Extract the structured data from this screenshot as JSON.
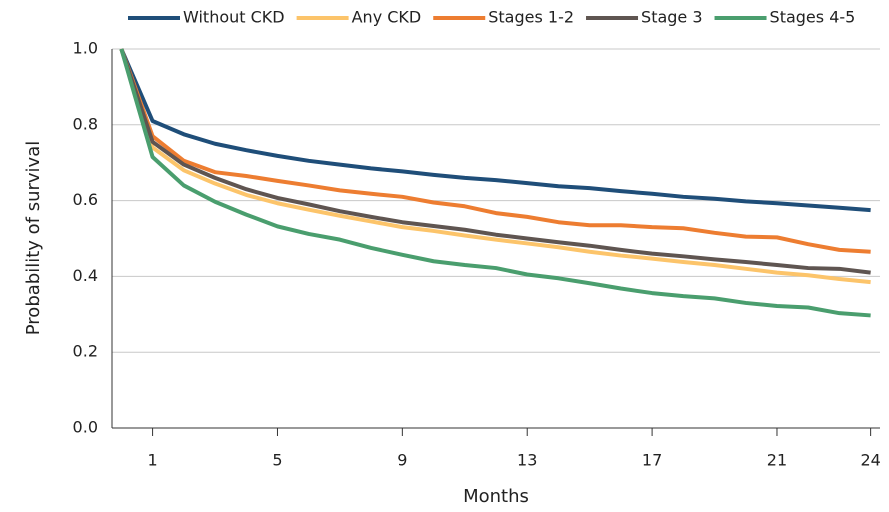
{
  "chart_data": {
    "type": "line",
    "x_label": "Months",
    "y_label": "Probability of survival",
    "x": [
      0,
      1,
      2,
      3,
      4,
      5,
      6,
      7,
      8,
      9,
      10,
      11,
      12,
      13,
      14,
      15,
      16,
      17,
      18,
      19,
      20,
      21,
      22,
      23,
      24
    ],
    "series": [
      {
        "name": "Without CKD",
        "color": "#1f4e79",
        "values": [
          1.0,
          0.81,
          0.775,
          0.75,
          0.733,
          0.718,
          0.705,
          0.695,
          0.685,
          0.677,
          0.668,
          0.66,
          0.654,
          0.646,
          0.638,
          0.633,
          0.625,
          0.618,
          0.61,
          0.605,
          0.598,
          0.593,
          0.587,
          0.581,
          0.575
        ]
      },
      {
        "name": "Any CKD",
        "color": "#fcc46a",
        "values": [
          1.0,
          0.74,
          0.68,
          0.645,
          0.615,
          0.593,
          0.576,
          0.56,
          0.545,
          0.53,
          0.52,
          0.508,
          0.497,
          0.487,
          0.477,
          0.465,
          0.455,
          0.447,
          0.438,
          0.43,
          0.42,
          0.41,
          0.403,
          0.393,
          0.385
        ]
      },
      {
        "name": "Stages 1-2",
        "color": "#ed7d31",
        "values": [
          1.0,
          0.77,
          0.705,
          0.675,
          0.665,
          0.652,
          0.64,
          0.627,
          0.618,
          0.61,
          0.595,
          0.585,
          0.567,
          0.557,
          0.543,
          0.535,
          0.535,
          0.53,
          0.527,
          0.515,
          0.505,
          0.503,
          0.485,
          0.47,
          0.465
        ]
      },
      {
        "name": "Stage 3",
        "color": "#5f5551",
        "values": [
          1.0,
          0.755,
          0.695,
          0.66,
          0.63,
          0.607,
          0.59,
          0.572,
          0.557,
          0.543,
          0.533,
          0.523,
          0.51,
          0.5,
          0.49,
          0.481,
          0.47,
          0.46,
          0.453,
          0.445,
          0.438,
          0.43,
          0.422,
          0.42,
          0.41
        ]
      },
      {
        "name": "Stages 4-5",
        "color": "#4a9e6e",
        "values": [
          1.0,
          0.715,
          0.64,
          0.597,
          0.563,
          0.532,
          0.512,
          0.497,
          0.475,
          0.457,
          0.44,
          0.43,
          0.422,
          0.405,
          0.395,
          0.382,
          0.368,
          0.356,
          0.348,
          0.342,
          0.33,
          0.322,
          0.318,
          0.303,
          0.297
        ]
      }
    ],
    "xlim": [
      -0.3,
      24.3
    ],
    "xticks": [
      1,
      5,
      9,
      13,
      17,
      21,
      24
    ],
    "ylim": [
      0,
      1
    ],
    "yticks": [
      {
        "value": 0,
        "label": "0.0"
      },
      0.2,
      0.4,
      0.6,
      0.8,
      {
        "value": 1,
        "label": "1.0"
      }
    ],
    "grid": true,
    "legend": "top"
  }
}
